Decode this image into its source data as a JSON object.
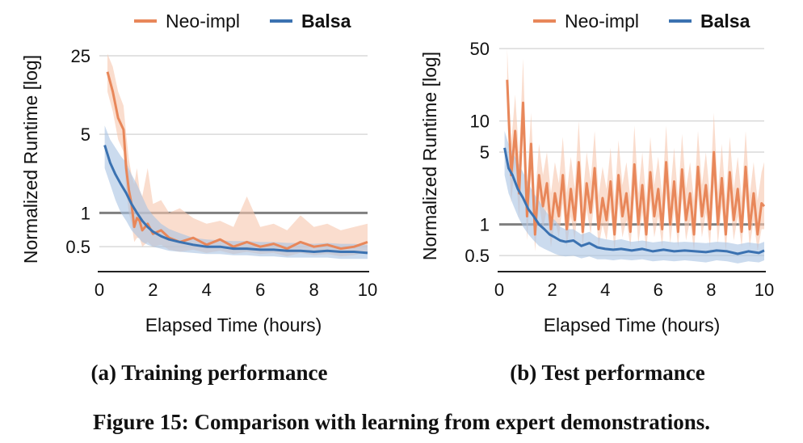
{
  "figure": {
    "caption": "Figure 15: Comparison with learning from expert demonstrations."
  },
  "colors": {
    "neo": "#e8875a",
    "neo_band": "#f6c7ae",
    "balsa": "#3b72b1",
    "balsa_band": "#a9c3e2",
    "grid": "#d9d9d9",
    "reference": "#7f7f7f",
    "axis": "#222222"
  },
  "chart_data": [
    {
      "type": "line",
      "subcaption": "(a) Training performance",
      "xlabel": "Elapsed Time (hours)",
      "ylabel": "Normalized Runtime [log]",
      "yscale": "log",
      "xlim": [
        0,
        10
      ],
      "ylim": [
        0.3,
        30
      ],
      "xticks": [
        0,
        2,
        4,
        6,
        8,
        10
      ],
      "xtick_labels": [
        "0",
        "2",
        "4",
        "6",
        "8",
        "10"
      ],
      "yticks": [
        0.5,
        1,
        5,
        25
      ],
      "ytick_labels": [
        "0.5",
        "1",
        "5",
        "25"
      ],
      "grid": true,
      "reference_line": 1,
      "legend": {
        "placement": "top",
        "entries": [
          "Neo-impl",
          "Balsa"
        ]
      },
      "series": [
        {
          "name": "Neo-impl",
          "x": [
            0.3,
            0.5,
            0.7,
            0.9,
            1.0,
            1.1,
            1.2,
            1.3,
            1.4,
            1.5,
            1.6,
            1.8,
            2.0,
            2.3,
            2.6,
            3.0,
            3.5,
            4.0,
            4.5,
            5.0,
            5.5,
            6.0,
            6.5,
            7.0,
            7.5,
            8.0,
            8.5,
            9.0,
            9.5,
            10.0
          ],
          "y": [
            18,
            12,
            7,
            5.5,
            2.5,
            1.6,
            1.2,
            0.75,
            0.9,
            0.85,
            0.7,
            0.8,
            0.65,
            0.7,
            0.6,
            0.55,
            0.6,
            0.52,
            0.58,
            0.5,
            0.55,
            0.5,
            0.53,
            0.48,
            0.55,
            0.5,
            0.52,
            0.48,
            0.5,
            0.55
          ],
          "lower": [
            12,
            8,
            4.5,
            3.5,
            1.6,
            1.0,
            0.8,
            0.55,
            0.6,
            0.6,
            0.5,
            0.55,
            0.5,
            0.52,
            0.47,
            0.45,
            0.47,
            0.44,
            0.46,
            0.43,
            0.45,
            0.43,
            0.44,
            0.41,
            0.44,
            0.42,
            0.43,
            0.41,
            0.42,
            0.45
          ],
          "upper": [
            26,
            20,
            12,
            9,
            5,
            3,
            2.2,
            1.8,
            2.5,
            1.6,
            1.4,
            2.5,
            1.2,
            1.3,
            1.0,
            1.1,
            0.9,
            0.8,
            0.85,
            0.75,
            1.4,
            0.75,
            0.8,
            0.7,
            0.95,
            0.75,
            0.8,
            0.7,
            0.75,
            0.8
          ]
        },
        {
          "name": "Balsa",
          "x": [
            0.2,
            0.4,
            0.6,
            0.8,
            1.0,
            1.2,
            1.4,
            1.6,
            1.8,
            2.0,
            2.3,
            2.6,
            3.0,
            3.5,
            4.0,
            4.5,
            5.0,
            5.5,
            6.0,
            6.5,
            7.0,
            7.5,
            8.0,
            8.5,
            9.0,
            9.5,
            10.0
          ],
          "y": [
            4,
            2.8,
            2.2,
            1.8,
            1.5,
            1.2,
            1.0,
            0.85,
            0.75,
            0.68,
            0.62,
            0.58,
            0.55,
            0.52,
            0.5,
            0.5,
            0.48,
            0.48,
            0.47,
            0.47,
            0.46,
            0.46,
            0.45,
            0.46,
            0.45,
            0.45,
            0.44
          ],
          "lower": [
            2.5,
            1.8,
            1.3,
            1.0,
            0.85,
            0.7,
            0.62,
            0.55,
            0.52,
            0.5,
            0.48,
            0.46,
            0.45,
            0.44,
            0.43,
            0.43,
            0.42,
            0.42,
            0.41,
            0.41,
            0.4,
            0.4,
            0.4,
            0.4,
            0.39,
            0.39,
            0.39
          ],
          "upper": [
            6,
            4.5,
            3.8,
            3.2,
            2.8,
            2.2,
            1.8,
            1.4,
            1.1,
            0.95,
            0.8,
            0.72,
            0.66,
            0.6,
            0.58,
            0.57,
            0.56,
            0.56,
            0.55,
            0.55,
            0.54,
            0.54,
            0.53,
            0.54,
            0.53,
            0.53,
            0.52
          ]
        }
      ]
    },
    {
      "type": "line",
      "subcaption": "(b) Test performance",
      "xlabel": "Elapsed Time (hours)",
      "ylabel": "Normalized Runtime [log]",
      "yscale": "log",
      "xlim": [
        0,
        10
      ],
      "ylim": [
        0.35,
        60
      ],
      "xticks": [
        0,
        2,
        4,
        6,
        8,
        10
      ],
      "xtick_labels": [
        "0",
        "2",
        "4",
        "6",
        "8",
        "10"
      ],
      "yticks": [
        0.5,
        1,
        5,
        10,
        50
      ],
      "ytick_labels": [
        "0.5",
        "1",
        "5",
        "10",
        "50"
      ],
      "grid": true,
      "reference_line": 1,
      "legend": {
        "placement": "top",
        "entries": [
          "Neo-impl",
          "Balsa"
        ]
      },
      "series": [
        {
          "name": "Neo-impl",
          "x": [
            0.3,
            0.45,
            0.6,
            0.75,
            0.9,
            1.05,
            1.2,
            1.35,
            1.5,
            1.65,
            1.8,
            1.95,
            2.1,
            2.25,
            2.4,
            2.55,
            2.7,
            2.85,
            3.0,
            3.15,
            3.3,
            3.45,
            3.6,
            3.75,
            3.9,
            4.05,
            4.2,
            4.35,
            4.5,
            4.65,
            4.8,
            4.95,
            5.1,
            5.25,
            5.4,
            5.55,
            5.7,
            5.85,
            6.0,
            6.15,
            6.3,
            6.45,
            6.6,
            6.75,
            6.9,
            7.05,
            7.2,
            7.35,
            7.5,
            7.65,
            7.8,
            7.95,
            8.1,
            8.25,
            8.4,
            8.55,
            8.7,
            8.85,
            9.0,
            9.15,
            9.3,
            9.45,
            9.6,
            9.75,
            9.9,
            10.0
          ],
          "y": [
            25,
            3,
            8,
            2,
            15,
            1.2,
            6,
            0.8,
            3,
            1.5,
            2.5,
            0.9,
            2,
            1.2,
            3,
            0.9,
            2.2,
            1.1,
            4,
            0.85,
            2.5,
            1.3,
            3.5,
            0.9,
            1.8,
            1.1,
            2.6,
            0.8,
            3,
            1.2,
            2,
            0.85,
            3.8,
            1.0,
            2.4,
            0.8,
            3.2,
            1.2,
            2.2,
            0.9,
            4,
            1.0,
            2.6,
            0.85,
            3.4,
            1.1,
            2.0,
            0.8,
            3.6,
            1.2,
            2.4,
            0.9,
            5,
            1.0,
            2.8,
            0.8,
            3.2,
            1.1,
            2.2,
            0.85,
            3.6,
            0.9,
            2.0,
            0.8,
            1.6,
            1.5
          ],
          "lower": [
            12,
            1.6,
            4,
            1.1,
            7,
            0.7,
            3,
            0.55,
            1.6,
            0.9,
            1.4,
            0.6,
            1.1,
            0.75,
            1.6,
            0.6,
            1.2,
            0.7,
            2,
            0.6,
            1.4,
            0.8,
            1.8,
            0.6,
            1.0,
            0.7,
            1.4,
            0.55,
            1.6,
            0.75,
            1.1,
            0.6,
            2,
            0.65,
            1.3,
            0.55,
            1.7,
            0.75,
            1.2,
            0.6,
            2,
            0.65,
            1.4,
            0.6,
            1.8,
            0.7,
            1.1,
            0.55,
            1.9,
            0.75,
            1.3,
            0.6,
            2.5,
            0.65,
            1.5,
            0.55,
            1.7,
            0.7,
            1.2,
            0.6,
            1.9,
            0.6,
            1.1,
            0.55,
            0.9,
            0.9
          ],
          "upper": [
            50,
            6,
            18,
            4.5,
            40,
            2.5,
            12,
            1.8,
            6,
            3,
            5,
            2,
            4,
            2.5,
            7,
            2,
            4.5,
            2.2,
            10,
            1.8,
            5,
            2.6,
            8,
            1.9,
            3.6,
            2.2,
            5.5,
            1.7,
            6.5,
            2.4,
            4,
            1.8,
            9,
            2,
            5,
            1.7,
            7,
            2.4,
            4.5,
            1.9,
            9,
            2,
            5.5,
            1.8,
            7.5,
            2.2,
            4,
            1.7,
            8,
            2.4,
            5,
            1.9,
            12,
            2,
            6,
            1.7,
            7,
            2.2,
            4.5,
            1.8,
            8,
            1.9,
            4,
            1.7,
            3.2,
            4
          ]
        },
        {
          "name": "Balsa",
          "x": [
            0.2,
            0.35,
            0.5,
            0.7,
            0.9,
            1.1,
            1.3,
            1.5,
            1.7,
            1.9,
            2.1,
            2.3,
            2.5,
            2.8,
            3.1,
            3.4,
            3.7,
            4.0,
            4.3,
            4.6,
            5.0,
            5.4,
            5.8,
            6.2,
            6.6,
            7.0,
            7.4,
            7.8,
            8.2,
            8.6,
            9.0,
            9.4,
            9.8,
            10.0
          ],
          "y": [
            5.5,
            3.5,
            3.0,
            2.2,
            1.8,
            1.4,
            1.2,
            1.0,
            0.9,
            0.8,
            0.75,
            0.7,
            0.68,
            0.7,
            0.62,
            0.66,
            0.6,
            0.58,
            0.57,
            0.58,
            0.56,
            0.58,
            0.55,
            0.57,
            0.55,
            0.56,
            0.55,
            0.54,
            0.56,
            0.55,
            0.52,
            0.55,
            0.53,
            0.56
          ],
          "lower": [
            3,
            2,
            1.6,
            1.2,
            0.95,
            0.8,
            0.7,
            0.62,
            0.58,
            0.55,
            0.52,
            0.5,
            0.49,
            0.5,
            0.47,
            0.49,
            0.46,
            0.46,
            0.45,
            0.46,
            0.45,
            0.46,
            0.44,
            0.45,
            0.44,
            0.45,
            0.44,
            0.43,
            0.45,
            0.44,
            0.42,
            0.44,
            0.43,
            0.45
          ],
          "upper": [
            8,
            6,
            5,
            4,
            3.2,
            2.5,
            2.0,
            1.7,
            1.4,
            1.2,
            1.1,
            0.95,
            0.9,
            0.9,
            0.8,
            0.85,
            0.75,
            0.72,
            0.7,
            0.72,
            0.68,
            0.7,
            0.67,
            0.69,
            0.67,
            0.68,
            0.67,
            0.66,
            0.68,
            0.67,
            0.64,
            0.67,
            0.65,
            0.68
          ]
        }
      ]
    }
  ]
}
